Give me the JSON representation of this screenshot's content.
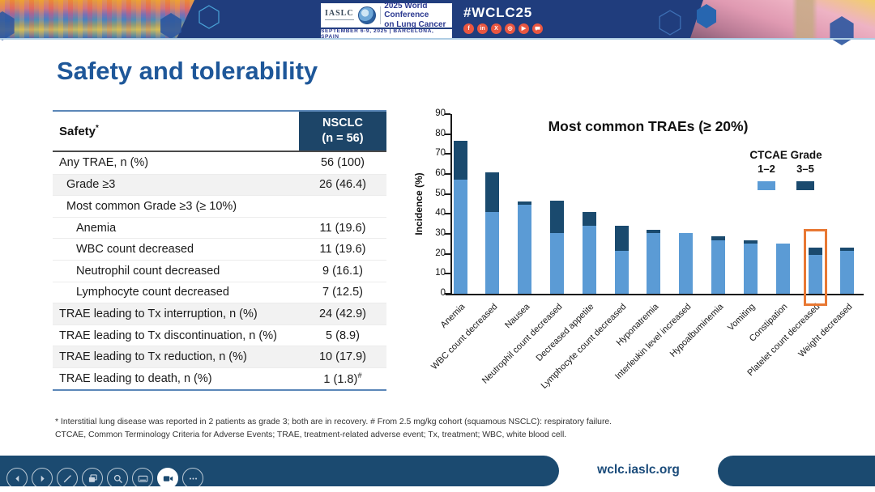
{
  "colors": {
    "header_navy": "#203D7D",
    "footer_navy": "#1B4A70",
    "title_blue": "#1E5799",
    "table_header_navy": "#1D4568",
    "grade12_blue": "#5B9BD5",
    "grade35_navy": "#1A4A6E",
    "highlight_orange": "#E87833",
    "social_red": "#E95640"
  },
  "header": {
    "logo_text": "IASLC",
    "conference_line1": "2025 World Conference",
    "conference_line2": "on Lung Cancer",
    "date_venue": "SEPTEMBER 6-9, 2025   |   BARCELONA, SPAIN",
    "hashtag": "#WCLC25",
    "social_icons": [
      {
        "name": "facebook-icon",
        "glyph": "f"
      },
      {
        "name": "linkedin-icon",
        "glyph": "in"
      },
      {
        "name": "x-icon",
        "glyph": "X"
      },
      {
        "name": "instagram-icon",
        "glyph": "◎"
      },
      {
        "name": "youtube-icon",
        "glyph": "▶"
      },
      {
        "name": "chat-icon",
        "glyph": ""
      }
    ]
  },
  "slide": {
    "title": "Safety and tolerability",
    "table": {
      "header": {
        "col1": "Safety",
        "col1_sup": "*",
        "col2_line1": "NSCLC",
        "col2_line2": "(n = 56)"
      },
      "rows": [
        {
          "label": "Any TRAE, n (%)",
          "value": "56 (100)",
          "indent": 0,
          "shaded": false
        },
        {
          "label": "Grade ≥3",
          "value": "26 (46.4)",
          "indent": 1,
          "shaded": true
        },
        {
          "label": "Most common Grade ≥3 (≥ 10%)",
          "value": "",
          "indent": 1,
          "shaded": false
        },
        {
          "label": "Anemia",
          "value": "11 (19.6)",
          "indent": 2,
          "shaded": false
        },
        {
          "label": "WBC count decreased",
          "value": "11 (19.6)",
          "indent": 2,
          "shaded": false
        },
        {
          "label": "Neutrophil count decreased",
          "value": "9 (16.1)",
          "indent": 2,
          "shaded": false
        },
        {
          "label": "Lymphocyte count decreased",
          "value": "7 (12.5)",
          "indent": 2,
          "shaded": false
        },
        {
          "label": "TRAE leading to Tx interruption, n (%)",
          "value": "24 (42.9)",
          "indent": 0,
          "shaded": true
        },
        {
          "label": "TRAE leading to Tx discontinuation, n (%)",
          "value": "5 (8.9)",
          "indent": 0,
          "shaded": false
        },
        {
          "label": "TRAE leading to Tx reduction, n (%)",
          "value": "10 (17.9)",
          "indent": 0,
          "shaded": true
        },
        {
          "label": "TRAE leading to death, n (%)",
          "value": "1 (1.8)",
          "value_sup": "#",
          "indent": 0,
          "shaded": false
        }
      ]
    },
    "footnote_line1": "* Interstitial lung disease was reported in 2 patients as grade 3; both are in recovery. # From 2.5 mg/kg cohort (squamous NSCLC): respiratory failure.",
    "footnote_line2": "CTCAE, Common Terminology Criteria for Adverse Events; TRAE, treatment-related adverse event; Tx, treatment; WBC, white blood cell."
  },
  "chart_data": {
    "type": "bar",
    "stacked": true,
    "title": "Most common TRAEs (≥ 20%)",
    "ylabel": "Incidence (%)",
    "ylim": [
      0,
      90
    ],
    "yticks": [
      0,
      10,
      20,
      30,
      40,
      50,
      60,
      70,
      80,
      90
    ],
    "grid": false,
    "legend_title": "CTCAE Grade",
    "legend_position": "upper right",
    "categories": [
      "Anemia",
      "WBC count decreased",
      "Nausea",
      "Neutrophil count decreased",
      "Decreased appetite",
      "Lymphocyte count decreased",
      "Hyponatremia",
      "Interleukin level increased",
      "Hypoalbuminemia",
      "Vomiting",
      "Constipation",
      "Platelet count decreased",
      "Weight decreased"
    ],
    "series": [
      {
        "name": "1–2",
        "color": "#5B9BD5",
        "values": [
          57.1,
          41.1,
          44.6,
          30.4,
          33.9,
          21.4,
          30.4,
          30.4,
          26.8,
          25.0,
          25.0,
          19.6,
          21.4
        ]
      },
      {
        "name": "3–5",
        "color": "#1A4A6E",
        "values": [
          19.6,
          19.6,
          1.8,
          16.1,
          7.1,
          12.5,
          1.8,
          0,
          1.8,
          1.8,
          0,
          3.6,
          1.8
        ]
      }
    ],
    "totals": [
      76.8,
      60.7,
      46.4,
      46.4,
      41.1,
      33.9,
      32.1,
      30.4,
      28.6,
      26.8,
      25.0,
      23.2,
      23.2
    ],
    "highlight": {
      "category": "Platelet count decreased",
      "color": "#E87833"
    }
  },
  "footer": {
    "url": "wclc.iaslc.org",
    "toolbar": [
      {
        "name": "previous",
        "active": false
      },
      {
        "name": "next",
        "active": false
      },
      {
        "name": "pen",
        "active": false
      },
      {
        "name": "slides",
        "active": false
      },
      {
        "name": "zoom",
        "active": false
      },
      {
        "name": "captions",
        "active": false
      },
      {
        "name": "camera",
        "active": true
      },
      {
        "name": "more",
        "active": false
      }
    ]
  }
}
